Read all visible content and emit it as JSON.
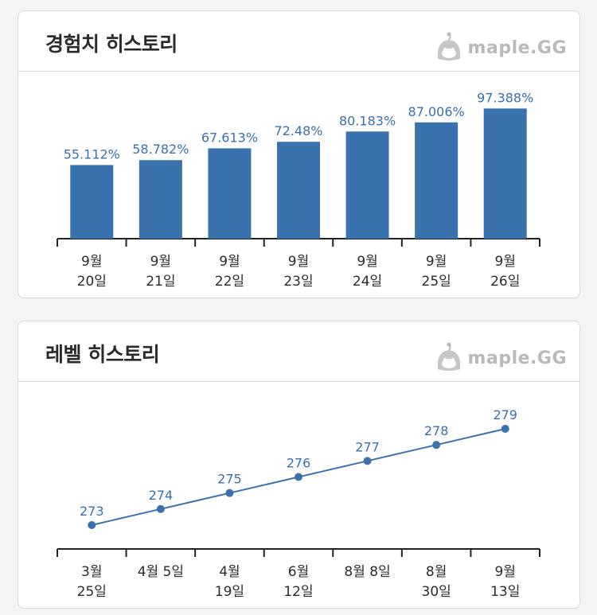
{
  "exp_history": {
    "title": "경험치 히스토리",
    "brand": "maple.GG",
    "brand_icon": "mascot-icon",
    "colors": {
      "bar": "#3a72ae",
      "label": "#3a6fae"
    },
    "chart_data": {
      "type": "bar",
      "categories": [
        [
          "9월",
          "20일"
        ],
        [
          "9월",
          "21일"
        ],
        [
          "9월",
          "22일"
        ],
        [
          "9월",
          "23일"
        ],
        [
          "9월",
          "24일"
        ],
        [
          "9월",
          "25일"
        ],
        [
          "9월",
          "26일"
        ]
      ],
      "values": [
        55.112,
        58.782,
        67.613,
        72.48,
        80.183,
        87.006,
        97.388
      ],
      "data_labels": [
        "55.112%",
        "58.782%",
        "67.613%",
        "72.48%",
        "80.183%",
        "87.006%",
        "97.388%"
      ],
      "ylim": [
        0,
        100
      ],
      "title": "",
      "xlabel": "",
      "ylabel": ""
    }
  },
  "level_history": {
    "title": "레벨 히스토리",
    "brand": "maple.GG",
    "brand_icon": "mascot-icon",
    "colors": {
      "line": "#3a72ae",
      "label": "#3a6fae"
    },
    "chart_data": {
      "type": "line",
      "categories": [
        [
          "3월",
          "25일"
        ],
        [
          "4월 5일"
        ],
        [
          "4월",
          "19일"
        ],
        [
          "6월",
          "12일"
        ],
        [
          "8월 8일"
        ],
        [
          "8월",
          "30일"
        ],
        [
          "9월",
          "13일"
        ]
      ],
      "values": [
        273,
        274,
        275,
        276,
        277,
        278,
        279
      ],
      "data_labels": [
        "273",
        "274",
        "275",
        "276",
        "277",
        "278",
        "279"
      ],
      "ylim": [
        273,
        279
      ],
      "title": "",
      "xlabel": "",
      "ylabel": ""
    }
  }
}
